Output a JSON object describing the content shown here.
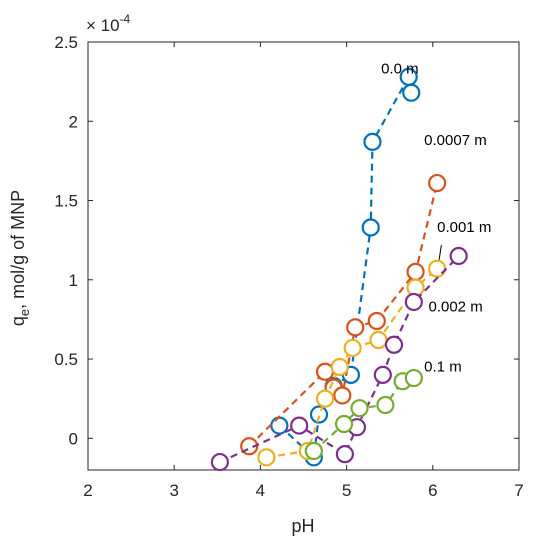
{
  "chart_data": {
    "type": "scatter",
    "title": "",
    "xlabel": "pH",
    "ylabel_main": "q",
    "ylabel_sub": "e",
    "ylabel_rest": ", mol/g of MNP",
    "y_exponent_prefix": "× 10",
    "y_exponent_power": "-4",
    "xlim": [
      2,
      7
    ],
    "ylim": [
      -0.2,
      2.5
    ],
    "xticks": [
      2,
      3,
      4,
      5,
      6,
      7
    ],
    "xtick_labels": [
      "2",
      "3",
      "4",
      "5",
      "6",
      "7"
    ],
    "yticks": [
      0,
      0.5,
      1,
      1.5,
      2,
      2.5
    ],
    "ytick_labels": [
      "0",
      "0.5",
      "1",
      "1.5",
      "2",
      "2.5"
    ],
    "grid": false,
    "series": [
      {
        "name": "0.0 m",
        "color": "#0072BD",
        "x": [
          4.22,
          4.62,
          4.68,
          4.85,
          5.05,
          5.28,
          5.3,
          5.72,
          5.75
        ],
        "y": [
          0.08,
          -0.12,
          0.15,
          0.33,
          0.4,
          1.33,
          1.87,
          2.28,
          2.18
        ]
      },
      {
        "name": "0.0007 m",
        "color": "#D95319",
        "x": [
          3.87,
          4.75,
          4.85,
          4.95,
          5.1,
          5.35,
          5.8,
          6.05
        ],
        "y": [
          -0.05,
          0.42,
          0.32,
          0.27,
          0.7,
          0.74,
          1.05,
          1.61
        ]
      },
      {
        "name": "0.001 m",
        "color": "#EDB120",
        "x": [
          4.07,
          4.55,
          4.75,
          4.92,
          5.07,
          5.37,
          5.8,
          6.05
        ],
        "y": [
          -0.12,
          -0.08,
          0.25,
          0.45,
          0.57,
          0.62,
          0.95,
          1.07
        ]
      },
      {
        "name": "0.002 m",
        "color": "#7E2F8E",
        "x": [
          3.53,
          4.45,
          4.98,
          5.12,
          5.42,
          5.55,
          5.78,
          6.3
        ],
        "y": [
          -0.15,
          0.08,
          -0.1,
          0.07,
          0.4,
          0.59,
          0.86,
          1.15
        ]
      },
      {
        "name": "0.1 m",
        "color": "#77AC30",
        "x": [
          4.62,
          4.97,
          5.15,
          5.45,
          5.65,
          5.78
        ],
        "y": [
          -0.08,
          0.09,
          0.19,
          0.21,
          0.36,
          0.38
        ]
      }
    ],
    "annotations": [
      {
        "text": "0.0 m",
        "series": "0.0 m",
        "x": 5.4,
        "y": 2.3
      },
      {
        "text": "0.0007 m",
        "series": "0.0007 m",
        "x": 5.9,
        "y": 1.85
      },
      {
        "text": "0.001 m",
        "series": "0.001 m",
        "x": 6.05,
        "y": 1.3
      },
      {
        "text": "0.002 m",
        "series": "0.002 m",
        "x": 5.95,
        "y": 0.8
      },
      {
        "text": "0.1 m",
        "series": "0.1 m",
        "x": 5.9,
        "y": 0.42
      }
    ]
  }
}
